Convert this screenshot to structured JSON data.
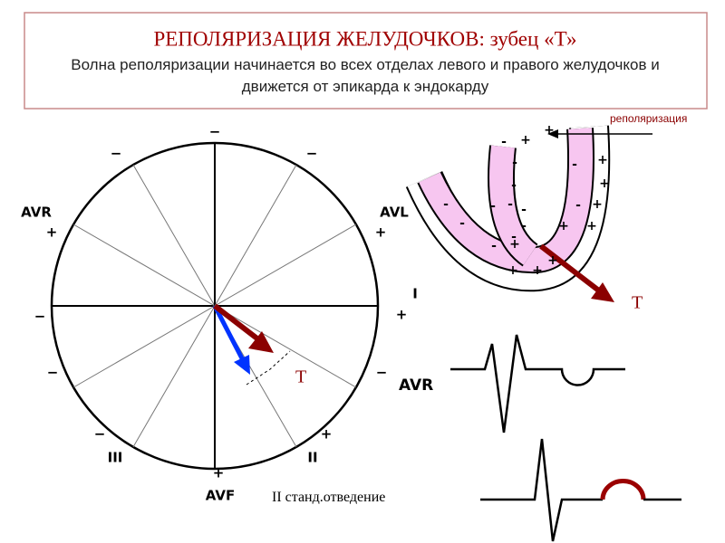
{
  "header": {
    "title": "РЕПОЛЯРИЗАЦИЯ ЖЕЛУДОЧКОВ: зубец «Т»",
    "subtitle": "Волна реполяризации начинается во всех отделах левого и правого желудочков и движется от эпикарда к эндокарду"
  },
  "hexaxial": {
    "labels": [
      "−",
      "−",
      "−",
      "AVR",
      "+",
      "AVL",
      "+",
      "−",
      "I",
      "+",
      "−",
      "−",
      "−",
      "+",
      "III",
      "II",
      "+",
      "AVF"
    ],
    "caption": "II станд.отведение",
    "vector_label": "T"
  },
  "heart": {
    "process_label": "реполяризация",
    "vector_label": "T",
    "signs": [
      "-",
      "+",
      "+",
      "-",
      "-",
      "-",
      "-",
      "-",
      "-",
      "-",
      "-",
      "-",
      "-",
      "-",
      "-",
      "+",
      "+",
      "+",
      "+",
      "+",
      "+",
      "+",
      "+",
      "+"
    ]
  },
  "ecg": {
    "lead_label": "AVR"
  }
}
